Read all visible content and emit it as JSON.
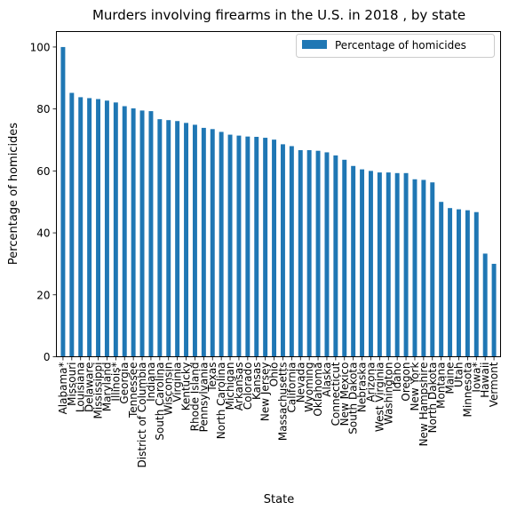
{
  "chart_data": {
    "type": "bar",
    "title": "Murders involving firearms in the U.S. in 2018 , by state",
    "xlabel": "State",
    "ylabel": "Percentage of homicides",
    "ylim": [
      0,
      105
    ],
    "yticks": [
      0,
      20,
      40,
      60,
      80,
      100
    ],
    "grid": false,
    "legend_position": "top-right",
    "bar_color": "#1f77b4",
    "categories": [
      "Alabama*",
      "Missouri",
      "Louisiana",
      "Delaware",
      "Mississippi",
      "Maryland",
      "Illinois*",
      "Georgia",
      "Tennessee",
      "District of Columbia",
      "Indiana",
      "South Carolina",
      "Wisconsin",
      "Virginia",
      "Kentucky",
      "Rhode Island",
      "Pennsylvania",
      "Texas",
      "North Carolina",
      "Michigan",
      "Arkansas",
      "Colorado",
      "Kansas",
      "New Jersey",
      "Ohio",
      "Massachusetts",
      "California",
      "Nevada",
      "Wyoming",
      "Oklahoma",
      "Alaska",
      "Connecticut",
      "New Mexico",
      "South Dakota",
      "Nebraska",
      "Arizona",
      "West Virginia",
      "Washington",
      "Idaho",
      "Oregon",
      "New York",
      "New Hampshire",
      "North Dakota",
      "Montana",
      "Maine",
      "Utah",
      "Minnesota",
      "Iowa*",
      "Hawaii",
      "Vermont"
    ],
    "series": [
      {
        "name": "Percentage of homicides",
        "values": [
          100,
          85.2,
          83.8,
          83.5,
          83.2,
          82.7,
          82.1,
          80.9,
          80.2,
          79.5,
          79.3,
          76.7,
          76.4,
          76.1,
          75.5,
          74.9,
          73.9,
          73.5,
          72.6,
          71.7,
          71.4,
          71.1,
          71.0,
          70.7,
          70.1,
          68.6,
          68.0,
          66.7,
          66.7,
          66.5,
          66.0,
          65.0,
          63.6,
          61.6,
          60.5,
          60.0,
          59.5,
          59.5,
          59.3,
          59.3,
          57.3,
          57.1,
          56.3,
          50.0,
          48.0,
          47.6,
          47.3,
          46.7,
          33.3,
          30.0
        ]
      }
    ]
  }
}
